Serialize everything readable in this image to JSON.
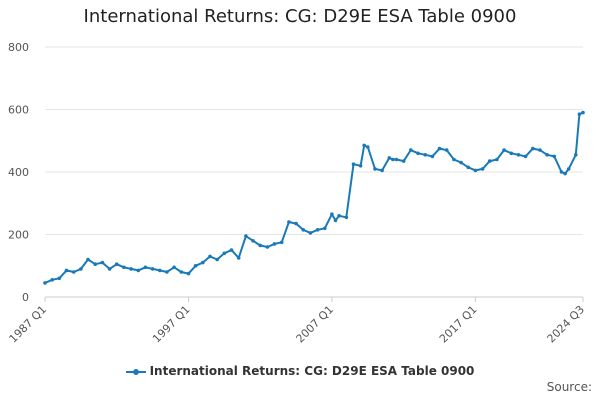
{
  "chart_data": {
    "type": "line",
    "title": "International Returns: CG: D29E ESA Table 0900",
    "xlabel": "",
    "ylabel": "",
    "ylim": [
      0,
      800
    ],
    "y_ticks": [
      0,
      200,
      400,
      600,
      800
    ],
    "x_ticks": [
      "1987 Q1",
      "1997 Q1",
      "2007 Q1",
      "2017 Q1",
      "2024 Q3"
    ],
    "grid": "horizontal",
    "legend_position": "bottom",
    "series": [
      {
        "name": "International Returns: CG: D29E ESA Table 0900",
        "color": "#1a7ab8",
        "x": [
          "1987 Q1",
          "1987 Q3",
          "1988 Q1",
          "1988 Q3",
          "1989 Q1",
          "1989 Q3",
          "1990 Q1",
          "1990 Q3",
          "1991 Q1",
          "1991 Q3",
          "1992 Q1",
          "1992 Q3",
          "1993 Q1",
          "1993 Q3",
          "1994 Q1",
          "1994 Q3",
          "1995 Q1",
          "1995 Q3",
          "1996 Q1",
          "1996 Q3",
          "1997 Q1",
          "1997 Q3",
          "1998 Q1",
          "1998 Q3",
          "1999 Q1",
          "1999 Q3",
          "2000 Q1",
          "2000 Q3",
          "2001 Q1",
          "2001 Q3",
          "2002 Q1",
          "2002 Q3",
          "2003 Q1",
          "2003 Q3",
          "2004 Q1",
          "2004 Q3",
          "2005 Q1",
          "2005 Q3",
          "2006 Q1",
          "2006 Q3",
          "2007 Q1",
          "2007 Q2",
          "2007 Q3",
          "2008 Q1",
          "2008 Q3",
          "2009 Q1",
          "2009 Q2",
          "2009 Q3",
          "2010 Q1",
          "2010 Q3",
          "2011 Q1",
          "2011 Q2",
          "2011 Q3",
          "2012 Q1",
          "2012 Q3",
          "2013 Q1",
          "2013 Q3",
          "2014 Q1",
          "2014 Q3",
          "2015 Q1",
          "2015 Q3",
          "2016 Q1",
          "2016 Q3",
          "2017 Q1",
          "2017 Q3",
          "2018 Q1",
          "2018 Q3",
          "2019 Q1",
          "2019 Q3",
          "2020 Q1",
          "2020 Q3",
          "2021 Q1",
          "2021 Q3",
          "2022 Q1",
          "2022 Q3",
          "2023 Q1",
          "2023 Q2",
          "2023 Q3",
          "2024 Q1",
          "2024 Q2",
          "2024 Q3"
        ],
        "values": [
          45,
          55,
          60,
          85,
          80,
          90,
          120,
          105,
          110,
          90,
          105,
          95,
          90,
          85,
          95,
          90,
          85,
          80,
          95,
          80,
          75,
          100,
          110,
          130,
          120,
          140,
          150,
          125,
          195,
          180,
          165,
          160,
          170,
          175,
          240,
          235,
          215,
          205,
          215,
          220,
          265,
          245,
          260,
          255,
          425,
          420,
          485,
          480,
          410,
          405,
          445,
          440,
          440,
          435,
          470,
          460,
          455,
          450,
          475,
          470,
          440,
          430,
          415,
          405,
          410,
          435,
          440,
          470,
          460,
          455,
          450,
          475,
          470,
          455,
          450,
          400,
          395,
          410,
          455,
          585,
          590
        ]
      }
    ]
  },
  "legend": {
    "label": "International Returns: CG: D29E ESA Table 0900"
  },
  "footer": {
    "source_label": "Source:"
  }
}
